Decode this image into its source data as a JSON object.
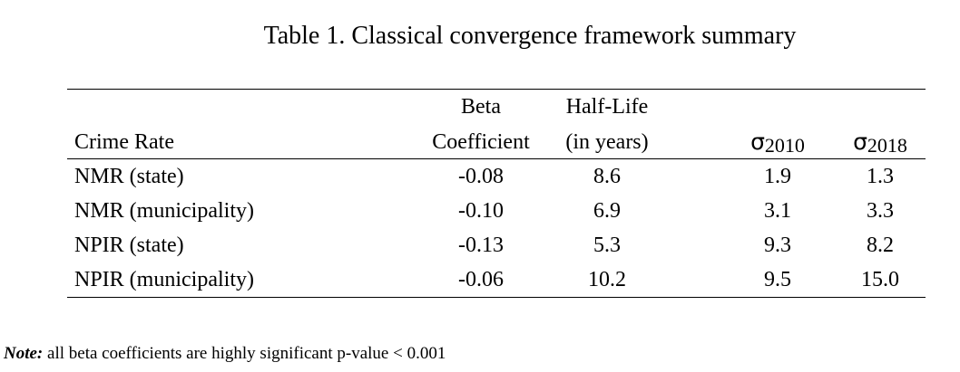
{
  "title": "Table 1. Classical convergence framework summary",
  "table": {
    "columns": [
      {
        "lines": [
          "Crime Rate"
        ]
      },
      {
        "lines": [
          "Beta",
          "Coefficient"
        ]
      },
      {
        "lines": [
          "Half-Life",
          "(in years)"
        ]
      },
      {
        "symbol": "σ",
        "subscript": "2010"
      },
      {
        "symbol": "σ",
        "subscript": "2018"
      }
    ],
    "rows": [
      [
        "NMR (state)",
        "-0.08",
        "8.6",
        "1.9",
        "1.3"
      ],
      [
        "NMR (municipality)",
        "-0.10",
        "6.9",
        "3.1",
        "3.3"
      ],
      [
        "NPIR (state)",
        "-0.13",
        "5.3",
        "9.3",
        "8.2"
      ],
      [
        "NPIR (municipality)",
        "-0.06",
        "10.2",
        "9.5",
        "15.0"
      ]
    ]
  },
  "note": {
    "label": "Note:",
    "text": "all beta coefficients are highly significant p-value < 0.001"
  }
}
